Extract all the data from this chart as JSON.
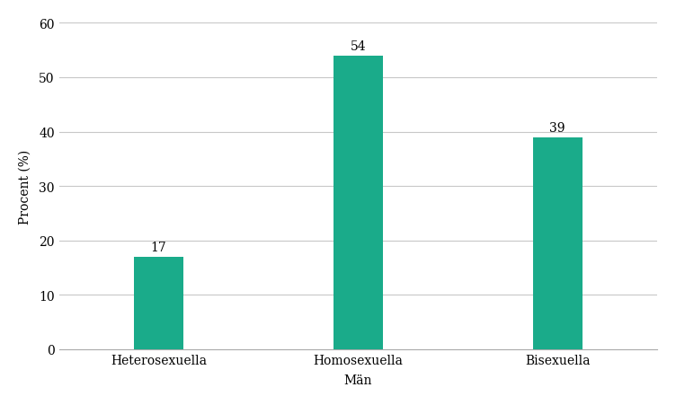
{
  "categories": [
    "Heterosexuella",
    "Homosexuella",
    "Bisexuella"
  ],
  "values": [
    17,
    54,
    39
  ],
  "bar_color": "#1aab8a",
  "bar_width": 0.25,
  "xlabel": "Män",
  "ylabel": "Procent (%)",
  "ylim": [
    0,
    60
  ],
  "yticks": [
    0,
    10,
    20,
    30,
    40,
    50,
    60
  ],
  "title": "",
  "label_fontsize": 10,
  "axis_label_fontsize": 10,
  "value_label_fontsize": 10,
  "background_color": "#ffffff",
  "grid_color": "#c8c8c8",
  "spine_color": "#aaaaaa"
}
